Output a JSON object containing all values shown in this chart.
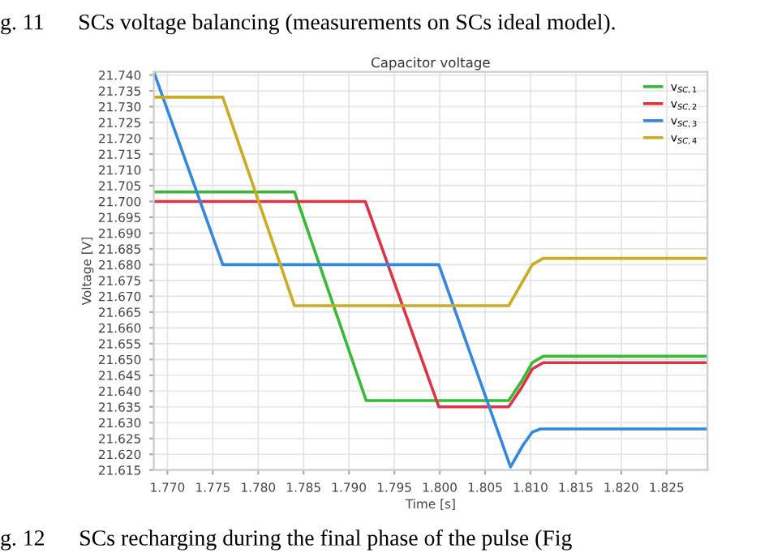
{
  "chart_data": {
    "type": "line",
    "title": "Capacitor voltage",
    "xlabel": "Time [s]",
    "ylabel": "Voltage [V]",
    "annotations": [
      "g. 11      SCs voltage balancing (measurements on SCs ideal model).",
      "g. 12      SCs recharging during the final phase of the pulse (Fig"
    ],
    "series": [
      {
        "name": "v$_{SC,1}$",
        "color": "#33bb33",
        "x": [
          1.7685,
          1.784,
          1.7919,
          1.8076,
          1.809,
          1.8102,
          1.8114,
          1.8295
        ],
        "values": [
          21.703,
          21.703,
          21.637,
          21.637,
          21.643,
          21.649,
          21.651,
          21.651
        ]
      },
      {
        "name": "v$_{SC,2}$",
        "color": "#dd3344",
        "x": [
          1.7685,
          1.7918,
          1.7999,
          1.8076,
          1.809,
          1.8102,
          1.8114,
          1.8295
        ],
        "values": [
          21.7,
          21.7,
          21.635,
          21.635,
          21.641,
          21.647,
          21.649,
          21.649
        ]
      },
      {
        "name": "v$_{SC,3}$",
        "color": "#3388dd",
        "x": [
          1.7685,
          1.7761,
          1.7999,
          1.8078,
          1.8092,
          1.8102,
          1.8111,
          1.8295
        ],
        "values": [
          21.741,
          21.68,
          21.68,
          21.616,
          21.623,
          21.627,
          21.628,
          21.628
        ]
      },
      {
        "name": "v$_{SC,4}$",
        "color": "#ccaa22",
        "x": [
          1.7685,
          1.7761,
          1.784,
          1.8076,
          1.809,
          1.8102,
          1.8114,
          1.8295
        ],
        "values": [
          21.733,
          21.733,
          21.667,
          21.667,
          21.674,
          21.68,
          21.682,
          21.682
        ]
      }
    ],
    "xlim": [
      1.7685,
      1.8295
    ],
    "xticks": [
      {
        "value": 1.77,
        "label": "1.770"
      },
      {
        "value": 1.775,
        "label": "1.775"
      },
      {
        "value": 1.78,
        "label": "1.780"
      },
      {
        "value": 1.785,
        "label": "1.785"
      },
      {
        "value": 1.79,
        "label": "1.790"
      },
      {
        "value": 1.795,
        "label": "1.795"
      },
      {
        "value": 1.8,
        "label": "1.800"
      },
      {
        "value": 1.805,
        "label": "1.805"
      },
      {
        "value": 1.81,
        "label": "1.810"
      },
      {
        "value": 1.815,
        "label": "1.815"
      },
      {
        "value": 1.82,
        "label": "1.820"
      },
      {
        "value": 1.825,
        "label": "1.825"
      }
    ],
    "ylim": [
      21.615,
      21.741
    ],
    "yticks": [
      21.615,
      {
        "value": 21.62,
        "label": "21.620"
      },
      21.625,
      {
        "value": 21.63,
        "label": "21.630"
      },
      21.635,
      {
        "value": 21.64,
        "label": "21.640"
      },
      21.645,
      {
        "value": 21.65,
        "label": "21.650"
      },
      21.655,
      {
        "value": 21.66,
        "label": "21.660"
      },
      21.665,
      {
        "value": 21.67,
        "label": "21.670"
      },
      21.675,
      {
        "value": 21.68,
        "label": "21.680"
      },
      21.685,
      {
        "value": 21.69,
        "label": "21.690"
      },
      21.695,
      {
        "value": 21.7,
        "label": "21.700"
      },
      21.705,
      {
        "value": 21.71,
        "label": "21.710"
      },
      21.715,
      {
        "value": 21.72,
        "label": "21.720"
      },
      21.725,
      {
        "value": 21.73,
        "label": "21.730"
      },
      21.735,
      {
        "value": 21.74,
        "label": "21.740"
      }
    ],
    "grid": true,
    "legend": "top right",
    "marker": "none",
    "line_style": "solid"
  }
}
